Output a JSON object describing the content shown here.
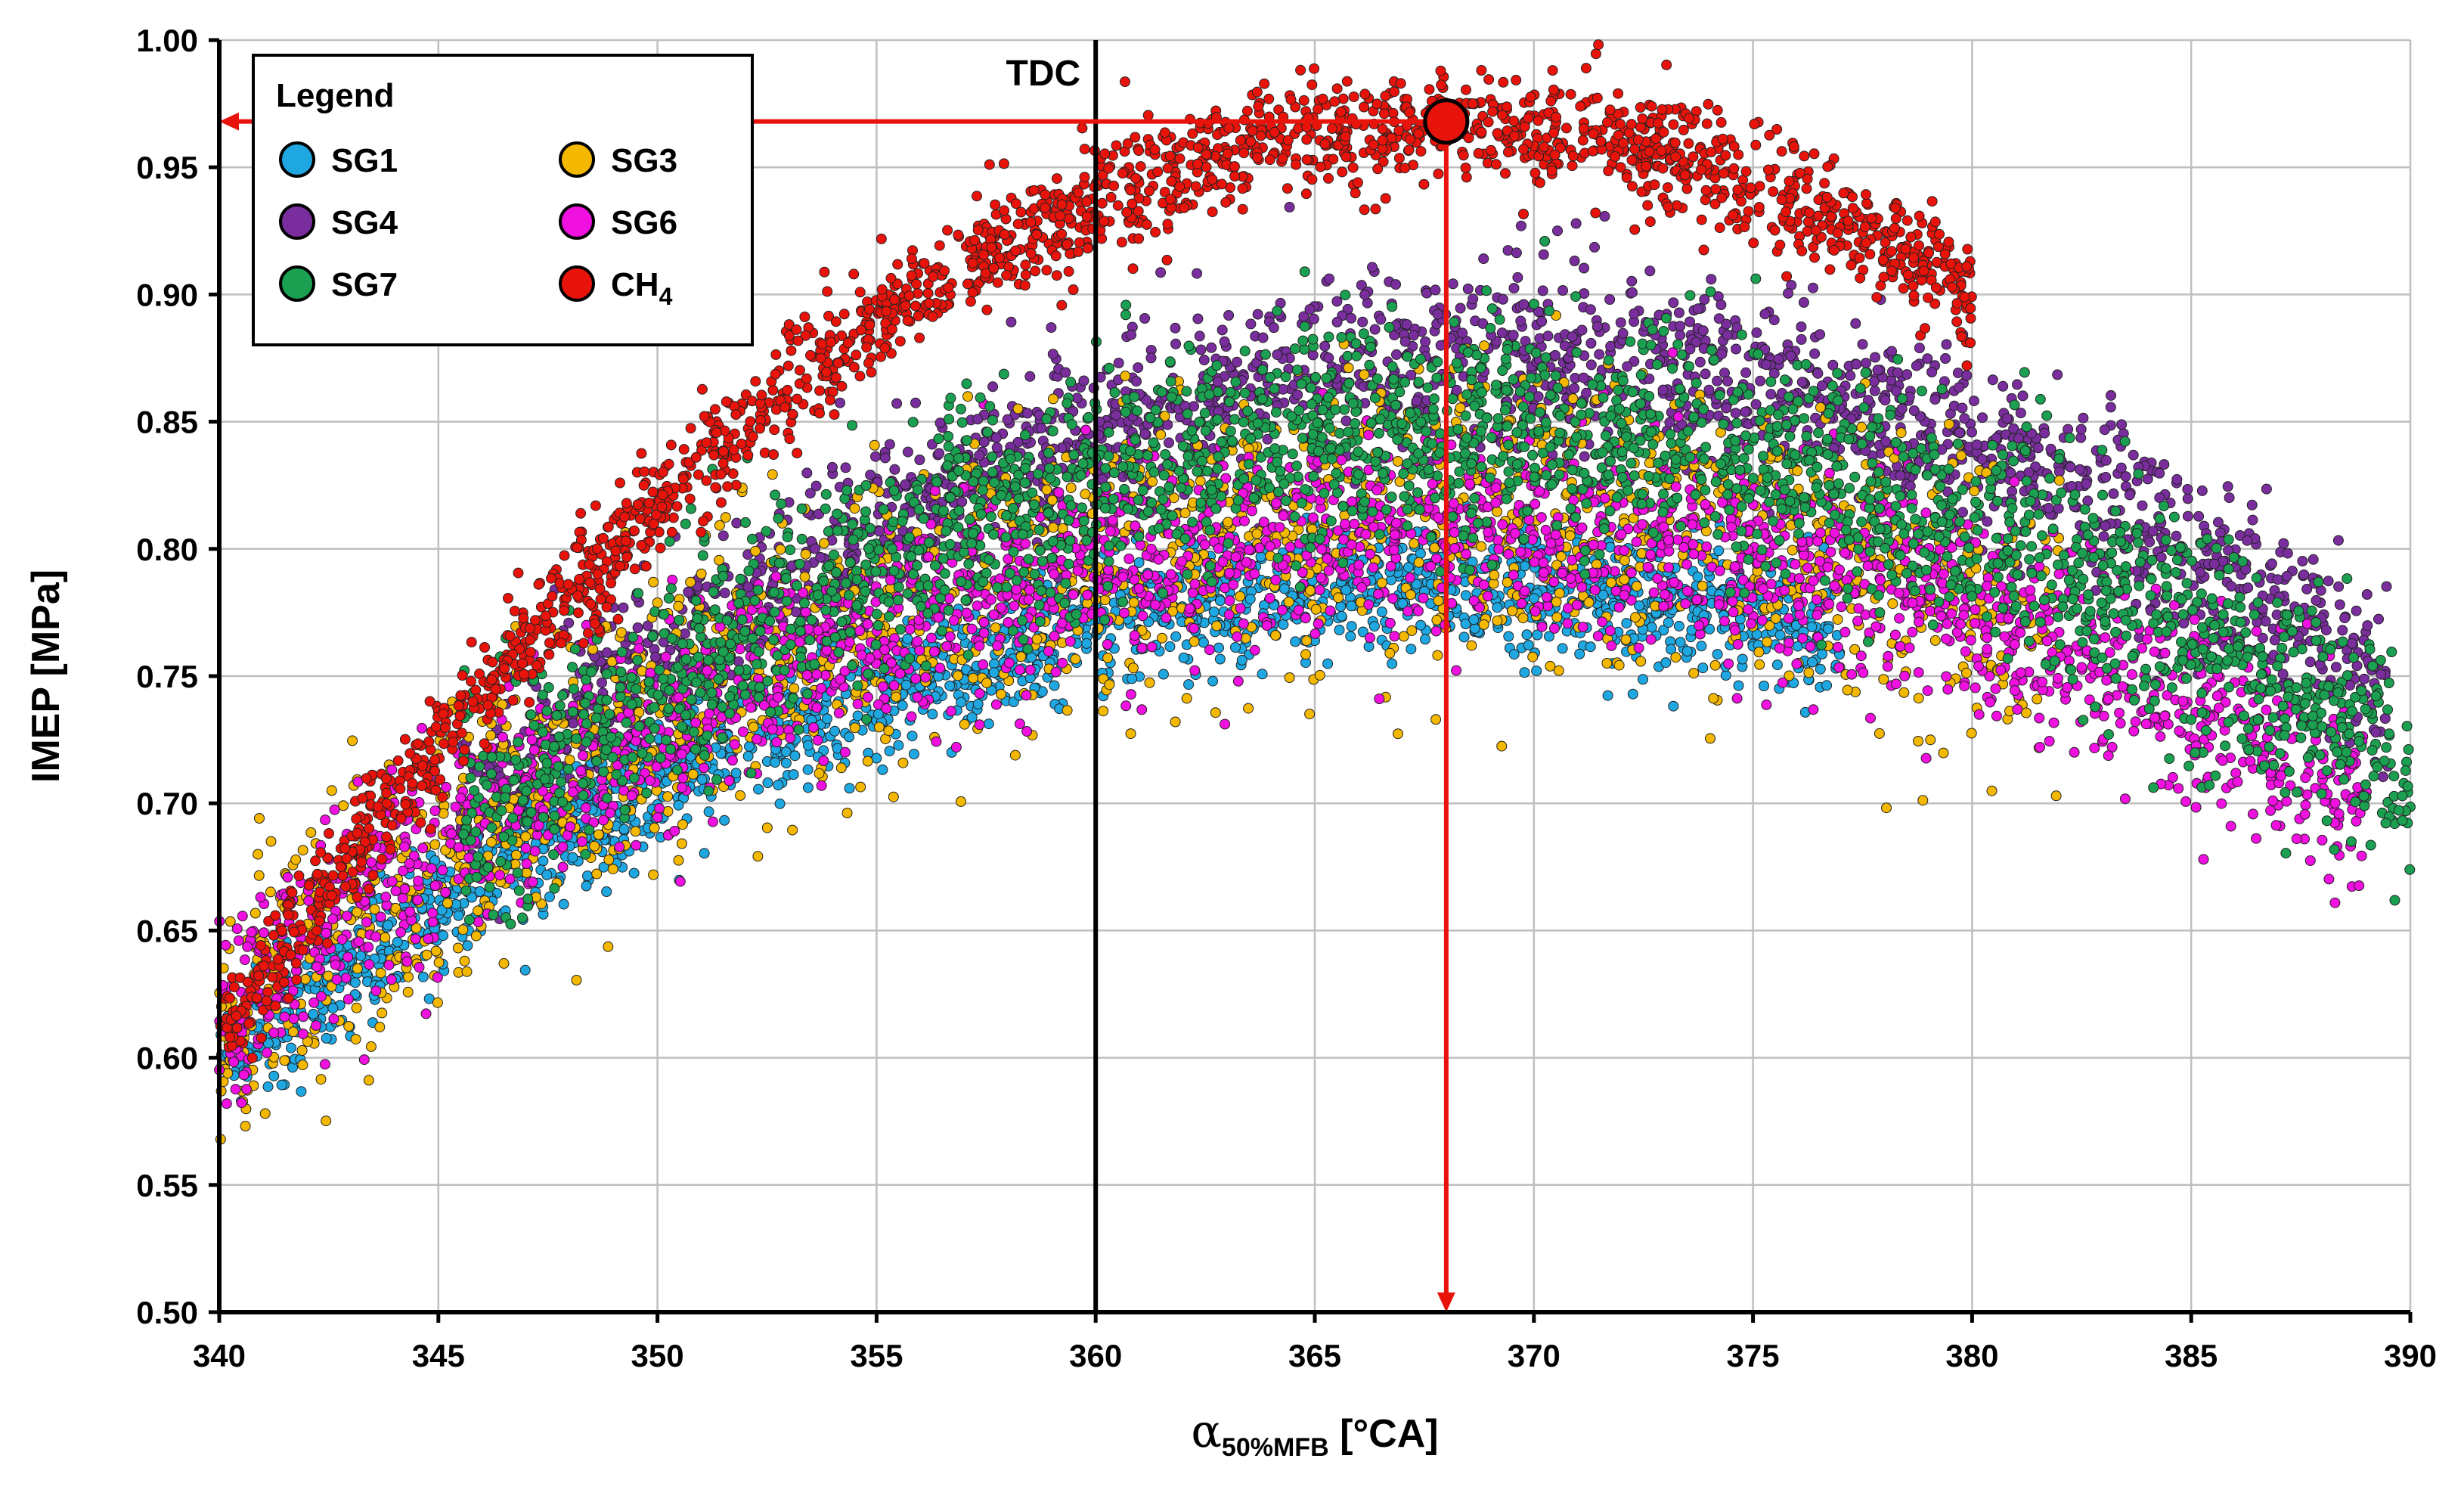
{
  "chart_data": {
    "type": "scatter",
    "title": "",
    "xlabel": {
      "symbol": "α",
      "subscript": "50%MFB",
      "unit": " [°CA]"
    },
    "ylabel": "IMEP [MPa]",
    "xlim": [
      340,
      390
    ],
    "ylim": [
      0.5,
      1.0
    ],
    "x_ticks": [
      340,
      345,
      350,
      355,
      360,
      365,
      370,
      375,
      380,
      385,
      390
    ],
    "y_ticks": [
      0.5,
      0.55,
      0.6,
      0.65,
      0.7,
      0.75,
      0.8,
      0.85,
      0.9,
      0.95,
      1.0
    ],
    "x_tick_labels": [
      "340",
      "345",
      "350",
      "355",
      "360",
      "365",
      "370",
      "375",
      "380",
      "385",
      "390"
    ],
    "y_tick_labels": [
      "0.50",
      "0.55",
      "0.60",
      "0.65",
      "0.70",
      "0.75",
      "0.80",
      "0.85",
      "0.90",
      "0.95",
      "1.00"
    ],
    "grid": true,
    "legend": {
      "title": "Legend",
      "placement": "top-left",
      "entries": [
        {
          "name": "SG1",
          "color": "#1ea7e1"
        },
        {
          "name": "SG3",
          "color": "#f5b800"
        },
        {
          "name": "SG4",
          "color": "#7a2e9e"
        },
        {
          "name": "SG6",
          "color": "#f010e0"
        },
        {
          "name": "SG7",
          "color": "#1aa050"
        },
        {
          "name": "CH4",
          "base": "CH",
          "sub": "4",
          "color": "#e8140c"
        }
      ]
    },
    "series_models": [
      {
        "name": "SG4",
        "color": "#7a2e9e",
        "x_range": [
          345.5,
          389.5
        ],
        "peak_x": 369.5,
        "peak_y": 0.875,
        "curvature": 0.00032,
        "spread": 0.018,
        "count": 2200
      },
      {
        "name": "SG1",
        "color": "#1ea7e1",
        "x_range": [
          340,
          377
        ],
        "peak_x": 368,
        "peak_y": 0.785,
        "curvature": 0.00024,
        "spread": 0.013,
        "count": 2000
      },
      {
        "name": "SG3",
        "color": "#f5b800",
        "x_range": [
          340,
          382
        ],
        "peak_x": 368,
        "peak_y": 0.815,
        "curvature": 0.00026,
        "spread": 0.028,
        "count": 1800
      },
      {
        "name": "SG6",
        "color": "#f010e0",
        "x_range": [
          340,
          389
        ],
        "peak_x": 368,
        "peak_y": 0.808,
        "curvature": 0.00024,
        "spread": 0.02,
        "count": 2400
      },
      {
        "name": "SG7",
        "color": "#1aa050",
        "x_range": [
          345.5,
          390
        ],
        "peak_x": 368.5,
        "peak_y": 0.848,
        "curvature": 0.0003,
        "spread": 0.022,
        "count": 2400
      },
      {
        "name": "CH4",
        "color": "#e8140c",
        "x_range": [
          340,
          380
        ],
        "peak_x": 368,
        "peak_y": 0.966,
        "curvature": 0.00046,
        "spread": 0.011,
        "count": 2000
      }
    ],
    "annotations": {
      "tdc": {
        "label": "TDC",
        "x": 360
      },
      "optimum": {
        "x": 368,
        "y": 0.968,
        "color": "#e8140c"
      }
    }
  }
}
